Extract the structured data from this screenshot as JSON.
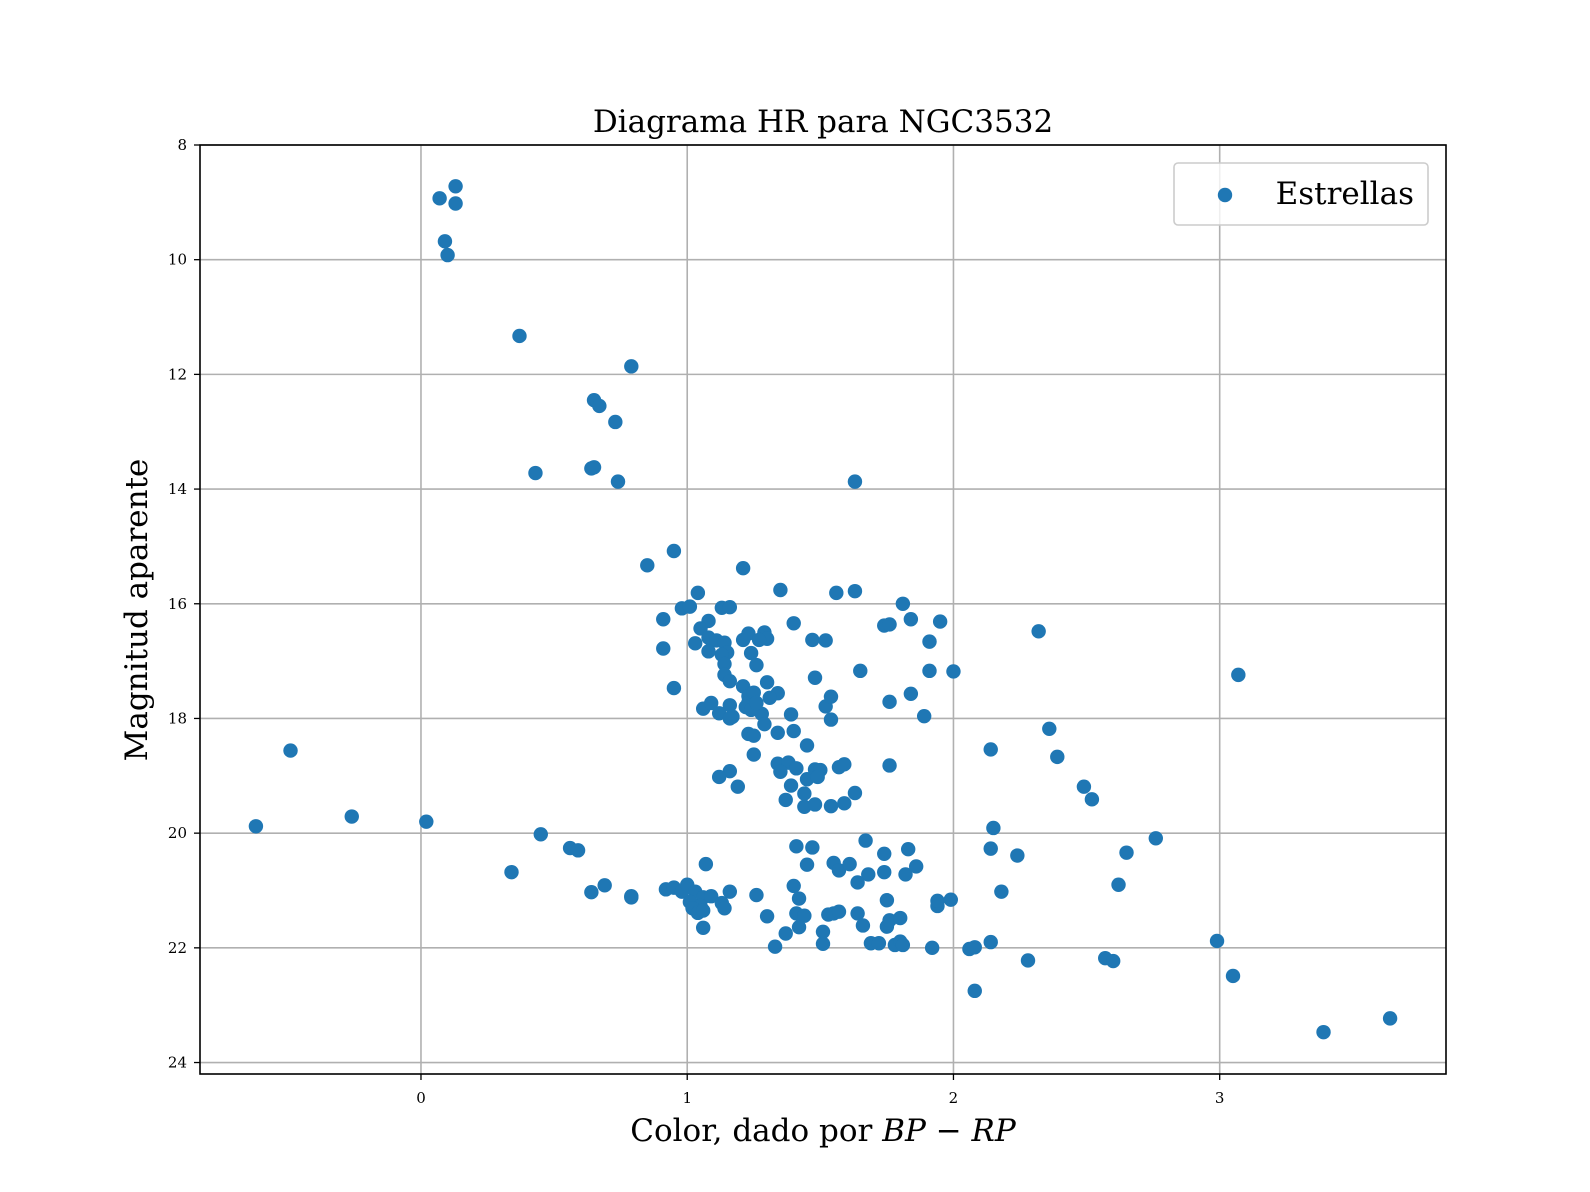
{
  "chart_data": {
    "type": "scatter",
    "title": "Diagrama HR para NGC3532",
    "xlabel_prefix": "Color, dado por ",
    "xlabel_math": "BP − RP",
    "ylabel": "Magnitud aparente",
    "xlim": [
      -0.83,
      3.85
    ],
    "ylim": [
      24.2,
      8.0
    ],
    "y_inverted": true,
    "grid": true,
    "legend_position": "top-right",
    "x_ticks": [
      0,
      1,
      2,
      3
    ],
    "y_ticks": [
      8,
      10,
      12,
      14,
      16,
      18,
      20,
      22,
      24
    ],
    "series": [
      {
        "name": "Estrellas",
        "color": "#1f77b4",
        "points": [
          [
            0.07,
            8.93
          ],
          [
            0.13,
            8.72
          ],
          [
            0.13,
            9.02
          ],
          [
            0.09,
            9.68
          ],
          [
            0.1,
            9.92
          ],
          [
            0.37,
            11.33
          ],
          [
            0.79,
            11.86
          ],
          [
            0.65,
            12.45
          ],
          [
            0.67,
            12.55
          ],
          [
            0.73,
            12.83
          ],
          [
            0.43,
            13.72
          ],
          [
            0.64,
            13.64
          ],
          [
            0.65,
            13.62
          ],
          [
            0.74,
            13.87
          ],
          [
            1.63,
            13.87
          ],
          [
            0.85,
            15.33
          ],
          [
            0.95,
            15.08
          ],
          [
            1.21,
            15.38
          ],
          [
            1.04,
            15.81
          ],
          [
            1.35,
            15.76
          ],
          [
            1.56,
            15.81
          ],
          [
            1.63,
            15.78
          ],
          [
            1.81,
            16.0
          ],
          [
            0.91,
            16.27
          ],
          [
            0.98,
            16.08
          ],
          [
            1.01,
            16.05
          ],
          [
            1.08,
            16.3
          ],
          [
            1.13,
            16.07
          ],
          [
            1.16,
            16.06
          ],
          [
            1.05,
            16.43
          ],
          [
            1.08,
            16.59
          ],
          [
            1.11,
            16.64
          ],
          [
            1.14,
            16.68
          ],
          [
            1.15,
            16.85
          ],
          [
            1.13,
            16.89
          ],
          [
            1.21,
            16.63
          ],
          [
            1.23,
            16.52
          ],
          [
            1.29,
            16.5
          ],
          [
            1.3,
            16.61
          ],
          [
            1.27,
            16.63
          ],
          [
            1.4,
            16.34
          ],
          [
            1.47,
            16.63
          ],
          [
            1.52,
            16.64
          ],
          [
            1.74,
            16.38
          ],
          [
            1.76,
            16.36
          ],
          [
            1.84,
            16.27
          ],
          [
            1.95,
            16.31
          ],
          [
            1.91,
            16.66
          ],
          [
            2.32,
            16.48
          ],
          [
            1.08,
            16.83
          ],
          [
            1.24,
            16.86
          ],
          [
            0.91,
            16.78
          ],
          [
            1.03,
            16.69
          ],
          [
            1.14,
            17.05
          ],
          [
            1.26,
            17.07
          ],
          [
            1.14,
            17.24
          ],
          [
            0.95,
            17.47
          ],
          [
            1.16,
            17.35
          ],
          [
            1.21,
            17.44
          ],
          [
            1.23,
            17.61
          ],
          [
            1.3,
            17.37
          ],
          [
            1.34,
            17.56
          ],
          [
            1.23,
            17.72
          ],
          [
            1.31,
            17.64
          ],
          [
            1.25,
            17.55
          ],
          [
            1.48,
            17.29
          ],
          [
            1.65,
            17.17
          ],
          [
            1.91,
            17.17
          ],
          [
            2.0,
            17.18
          ],
          [
            3.07,
            17.24
          ],
          [
            1.06,
            17.83
          ],
          [
            1.09,
            17.73
          ],
          [
            1.16,
            17.77
          ],
          [
            1.12,
            17.91
          ],
          [
            1.17,
            17.97
          ],
          [
            1.22,
            17.8
          ],
          [
            1.28,
            17.92
          ],
          [
            1.24,
            17.85
          ],
          [
            1.26,
            17.73
          ],
          [
            1.39,
            17.93
          ],
          [
            1.52,
            17.79
          ],
          [
            1.54,
            17.62
          ],
          [
            1.76,
            17.71
          ],
          [
            1.84,
            17.57
          ],
          [
            1.89,
            17.96
          ],
          [
            1.16,
            18.0
          ],
          [
            1.29,
            18.1
          ],
          [
            1.34,
            18.25
          ],
          [
            1.23,
            18.27
          ],
          [
            1.25,
            18.3
          ],
          [
            1.4,
            18.22
          ],
          [
            1.45,
            18.47
          ],
          [
            1.25,
            18.63
          ],
          [
            1.54,
            18.02
          ],
          [
            2.36,
            18.18
          ],
          [
            2.14,
            18.54
          ],
          [
            2.39,
            18.67
          ],
          [
            1.34,
            18.79
          ],
          [
            1.38,
            18.77
          ],
          [
            1.41,
            18.87
          ],
          [
            1.35,
            18.93
          ],
          [
            1.48,
            18.89
          ],
          [
            1.5,
            18.9
          ],
          [
            1.57,
            18.85
          ],
          [
            1.59,
            18.8
          ],
          [
            1.76,
            18.82
          ],
          [
            1.16,
            18.92
          ],
          [
            1.12,
            19.02
          ],
          [
            1.19,
            19.19
          ],
          [
            1.39,
            19.17
          ],
          [
            1.45,
            19.06
          ],
          [
            1.44,
            19.31
          ],
          [
            1.49,
            19.02
          ],
          [
            1.63,
            19.3
          ],
          [
            1.37,
            19.42
          ],
          [
            1.44,
            19.54
          ],
          [
            1.48,
            19.5
          ],
          [
            1.54,
            19.53
          ],
          [
            1.59,
            19.48
          ],
          [
            2.49,
            19.19
          ],
          [
            2.52,
            19.41
          ],
          [
            -0.62,
            19.88
          ],
          [
            -0.49,
            18.56
          ],
          [
            -0.26,
            19.71
          ],
          [
            0.02,
            19.8
          ],
          [
            0.45,
            20.02
          ],
          [
            0.56,
            20.26
          ],
          [
            0.59,
            20.3
          ],
          [
            0.34,
            20.68
          ],
          [
            1.07,
            20.54
          ],
          [
            1.41,
            20.23
          ],
          [
            1.47,
            20.25
          ],
          [
            1.45,
            20.55
          ],
          [
            1.55,
            20.52
          ],
          [
            1.57,
            20.65
          ],
          [
            1.61,
            20.54
          ],
          [
            1.67,
            20.13
          ],
          [
            1.68,
            20.72
          ],
          [
            1.74,
            20.36
          ],
          [
            1.74,
            20.68
          ],
          [
            1.82,
            20.72
          ],
          [
            1.83,
            20.28
          ],
          [
            1.86,
            20.58
          ],
          [
            2.15,
            19.91
          ],
          [
            2.14,
            20.27
          ],
          [
            2.24,
            20.39
          ],
          [
            2.65,
            20.34
          ],
          [
            2.76,
            20.09
          ],
          [
            0.64,
            21.03
          ],
          [
            0.69,
            20.91
          ],
          [
            0.79,
            21.1
          ],
          [
            0.79,
            21.12
          ],
          [
            0.92,
            20.98
          ],
          [
            0.95,
            20.95
          ],
          [
            0.98,
            21.02
          ],
          [
            1.0,
            20.9
          ],
          [
            1.03,
            21.02
          ],
          [
            1.01,
            21.2
          ],
          [
            1.06,
            21.12
          ],
          [
            1.09,
            21.1
          ],
          [
            1.05,
            21.27
          ],
          [
            1.02,
            21.31
          ],
          [
            1.04,
            21.39
          ],
          [
            1.06,
            21.35
          ],
          [
            1.06,
            21.65
          ],
          [
            1.13,
            21.22
          ],
          [
            1.14,
            21.31
          ],
          [
            1.16,
            21.02
          ],
          [
            1.26,
            21.08
          ],
          [
            1.3,
            21.45
          ],
          [
            1.4,
            20.92
          ],
          [
            1.42,
            21.14
          ],
          [
            1.41,
            21.4
          ],
          [
            1.44,
            21.44
          ],
          [
            1.42,
            21.64
          ],
          [
            1.37,
            21.75
          ],
          [
            1.33,
            21.98
          ],
          [
            1.51,
            21.72
          ],
          [
            1.51,
            21.93
          ],
          [
            1.53,
            21.42
          ],
          [
            1.55,
            21.4
          ],
          [
            1.57,
            21.37
          ],
          [
            1.64,
            21.4
          ],
          [
            1.66,
            21.61
          ],
          [
            1.69,
            21.92
          ],
          [
            1.72,
            21.92
          ],
          [
            1.75,
            21.63
          ],
          [
            1.76,
            21.52
          ],
          [
            1.75,
            21.17
          ],
          [
            1.8,
            21.48
          ],
          [
            1.78,
            21.95
          ],
          [
            1.8,
            21.89
          ],
          [
            1.81,
            21.95
          ],
          [
            1.64,
            20.86
          ],
          [
            1.92,
            22.0
          ],
          [
            1.94,
            21.27
          ],
          [
            1.94,
            21.18
          ],
          [
            1.99,
            21.16
          ],
          [
            2.06,
            22.02
          ],
          [
            2.08,
            21.99
          ],
          [
            2.08,
            22.75
          ],
          [
            2.14,
            21.9
          ],
          [
            2.18,
            21.02
          ],
          [
            2.28,
            22.22
          ],
          [
            2.57,
            22.18
          ],
          [
            2.6,
            22.23
          ],
          [
            2.62,
            20.9
          ],
          [
            2.99,
            21.88
          ],
          [
            3.05,
            22.49
          ],
          [
            3.39,
            23.47
          ],
          [
            3.64,
            23.23
          ]
        ]
      }
    ]
  }
}
